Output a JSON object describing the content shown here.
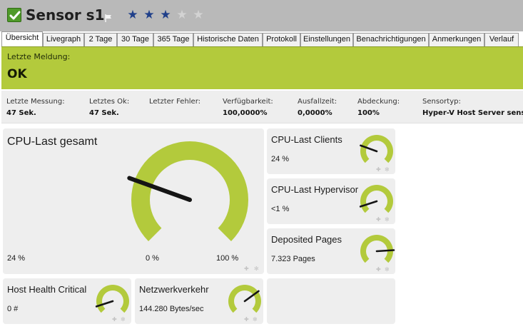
{
  "header": {
    "title": "Sensor s1",
    "status_icon": "check-icon",
    "flag_icon": "flag-icon",
    "priority_stars": 3,
    "priority_max": 5,
    "star_color": "#1f3f8a",
    "star_empty_color": "#d3d3d3"
  },
  "tabs": [
    {
      "label": "Übersicht",
      "active": true
    },
    {
      "label": "Livegraph"
    },
    {
      "label": "2 Tage"
    },
    {
      "label": "30 Tage"
    },
    {
      "label": "365 Tage"
    },
    {
      "label": "Historische Daten"
    },
    {
      "label": "Protokoll"
    },
    {
      "label": "Einstellungen"
    },
    {
      "label": "Benachrichtigungen"
    },
    {
      "label": "Anmerkungen"
    },
    {
      "label": "Verlauf"
    }
  ],
  "status": {
    "label": "Letzte Meldung:",
    "value": "OK",
    "color": "#b3ca3c"
  },
  "metrics": [
    {
      "label": "Letzte Messung:",
      "value": "47 Sek."
    },
    {
      "label": "Letztes Ok:",
      "value": "47 Sek."
    },
    {
      "label": "Letzter Fehler:",
      "value": ""
    },
    {
      "label": "Verfügbarkeit:",
      "value": "100,0000%"
    },
    {
      "label": "Ausfallzeit:",
      "value": "0,0000%"
    },
    {
      "label": "Abdeckung:",
      "value": "100%"
    },
    {
      "label": "Sensortyp:",
      "value": "Hyper-V Host Server sensor"
    }
  ],
  "gauge_color": "#b3ca3c",
  "channels": {
    "cpu_total": {
      "title": "CPU-Last gesamt",
      "value": "24 %",
      "min_label": "0 %",
      "max_label": "100 %",
      "fraction": 0.24
    },
    "cpu_clients": {
      "title": "CPU-Last Clients",
      "value": "24 %",
      "fraction": 0.24
    },
    "cpu_hypervisor": {
      "title": "CPU-Last Hypervisor",
      "value": "<1 %",
      "fraction": 0.1
    },
    "deposited_pages": {
      "title": "Deposited Pages",
      "value": "7.323 Pages",
      "fraction": 0.82
    },
    "host_health": {
      "title": "Host Health Critical",
      "value": "0 #",
      "fraction": 0.1
    },
    "network": {
      "title": "Netzwerkverkehr",
      "value": "144.280 Bytes/sec",
      "fraction": 0.7
    }
  }
}
